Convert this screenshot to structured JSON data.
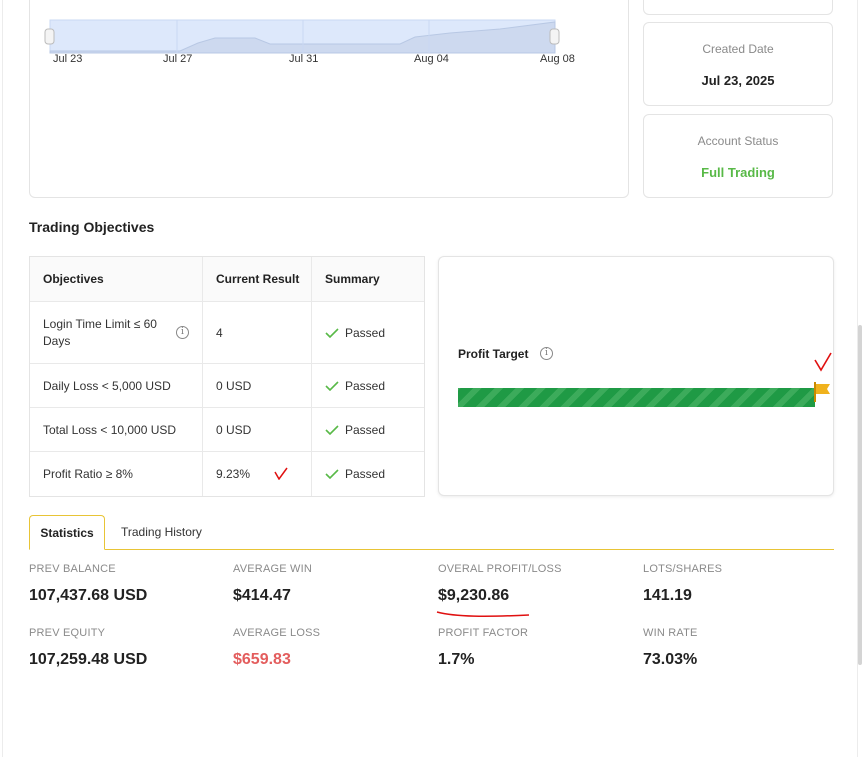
{
  "chart": {
    "x_labels": [
      "Jul 23",
      "Jul 27",
      "Jul 31",
      "Aug 04",
      "Aug 08"
    ]
  },
  "account": {
    "created_label": "Created Date",
    "created_value": "Jul 23, 2025",
    "status_label": "Account Status",
    "status_value": "Full Trading"
  },
  "objectives": {
    "title": "Trading Objectives",
    "headers": [
      "Objectives",
      "Current Result",
      "Summary"
    ],
    "rows": [
      {
        "objective": "Login Time Limit ≤ 60 Days",
        "result": "4",
        "summary": "Passed"
      },
      {
        "objective": "Daily Loss < 5,000 USD",
        "result": "0 USD",
        "summary": "Passed"
      },
      {
        "objective": "Total Loss < 10,000 USD",
        "result": "0 USD",
        "summary": "Passed"
      },
      {
        "objective": "Profit Ratio ≥ 8%",
        "result": "9.23%",
        "summary": "Passed"
      }
    ]
  },
  "profit_target": {
    "title": "Profit Target",
    "progress_percent": 100
  },
  "tabs": [
    "Statistics",
    "Trading History"
  ],
  "stats": {
    "prev_balance_label": "PREV BALANCE",
    "prev_balance": "107,437.68 USD",
    "average_win_label": "AVERAGE WIN",
    "average_win": "$414.47",
    "overall_pl_label": "OVERAL PROFIT/LOSS",
    "overall_pl": "$9,230.86",
    "lots_label": "LOTS/SHARES",
    "lots": "141.19",
    "prev_equity_label": "PREV EQUITY",
    "prev_equity": "107,259.48 USD",
    "average_loss_label": "AVERAGE LOSS",
    "average_loss": "$659.83",
    "profit_factor_label": "PROFIT FACTOR",
    "profit_factor": "1.7%",
    "win_rate_label": "WIN RATE",
    "win_rate": "73.03%"
  },
  "colors": {
    "accent": "#e8c436",
    "green": "#58b947",
    "progress": "#1f9a45",
    "loss": "#e35d5d",
    "annotation": "#e01010"
  }
}
